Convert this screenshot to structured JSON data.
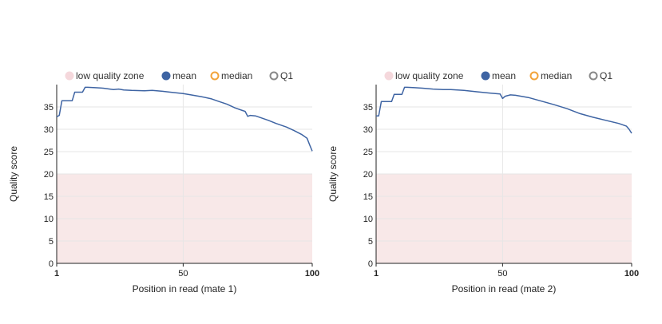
{
  "legend": {
    "low_quality_zone": "low quality zone",
    "mean": "mean",
    "median": "median",
    "q1": "Q1"
  },
  "colors": {
    "mean": "#3e64a3",
    "median": "#f2a33a",
    "q1": "#888888",
    "low_quality_zone_fill": "#f8e8e8",
    "low_quality_zone_legend": "#f5d8dc",
    "grid": "#e6e6e6",
    "axis": "#222222"
  },
  "chart_data": [
    {
      "type": "line",
      "xlabel": "Position in read (mate 1)",
      "ylabel": "Quality score",
      "xlim": [
        1,
        100
      ],
      "ylim": [
        0,
        40
      ],
      "x_ticks": [
        "1",
        "50",
        "100"
      ],
      "y_ticks": [
        "0",
        "5",
        "10",
        "15",
        "20",
        "25",
        "30",
        "35"
      ],
      "low_quality_zone": [
        0,
        20
      ],
      "grid": true,
      "legend_position": "top",
      "series": [
        {
          "name": "mean",
          "x": [
            1,
            2,
            3,
            4,
            7,
            8,
            11,
            12,
            13,
            16,
            19,
            23,
            25,
            27,
            30,
            35,
            38,
            42,
            45,
            50,
            53,
            57,
            61,
            64,
            67,
            70,
            73,
            74,
            75,
            76,
            78,
            80,
            83,
            86,
            90,
            93,
            96,
            98,
            99,
            100
          ],
          "y": [
            32.8,
            33.1,
            36.4,
            36.4,
            36.4,
            38.3,
            38.3,
            39.4,
            39.4,
            39.3,
            39.2,
            38.9,
            39.0,
            38.8,
            38.7,
            38.6,
            38.7,
            38.5,
            38.3,
            38.0,
            37.7,
            37.3,
            36.8,
            36.2,
            35.6,
            34.8,
            34.2,
            34.0,
            32.9,
            33.1,
            33.0,
            32.6,
            32.0,
            31.3,
            30.5,
            29.7,
            28.8,
            28.0,
            26.5,
            25.1
          ]
        }
      ]
    },
    {
      "type": "line",
      "xlabel": "Position in read (mate 2)",
      "ylabel": "Quality score",
      "xlim": [
        1,
        100
      ],
      "ylim": [
        0,
        40
      ],
      "x_ticks": [
        "1",
        "50",
        "100"
      ],
      "y_ticks": [
        "0",
        "5",
        "10",
        "15",
        "20",
        "25",
        "30",
        "35"
      ],
      "low_quality_zone": [
        0,
        20
      ],
      "grid": true,
      "legend_position": "top",
      "series": [
        {
          "name": "mean",
          "x": [
            1,
            2,
            3,
            4,
            7,
            8,
            11,
            12,
            13,
            16,
            19,
            23,
            27,
            30,
            35,
            40,
            45,
            49,
            50,
            51,
            53,
            55,
            60,
            65,
            70,
            75,
            80,
            85,
            90,
            95,
            98,
            99,
            100
          ],
          "y": [
            33.0,
            33.0,
            36.2,
            36.2,
            36.2,
            37.8,
            37.8,
            39.4,
            39.4,
            39.3,
            39.2,
            39.0,
            38.9,
            38.9,
            38.7,
            38.4,
            38.1,
            37.9,
            36.9,
            37.4,
            37.7,
            37.6,
            37.1,
            36.3,
            35.5,
            34.6,
            33.5,
            32.7,
            32.0,
            31.3,
            30.7,
            30.0,
            29.1
          ]
        }
      ]
    }
  ]
}
